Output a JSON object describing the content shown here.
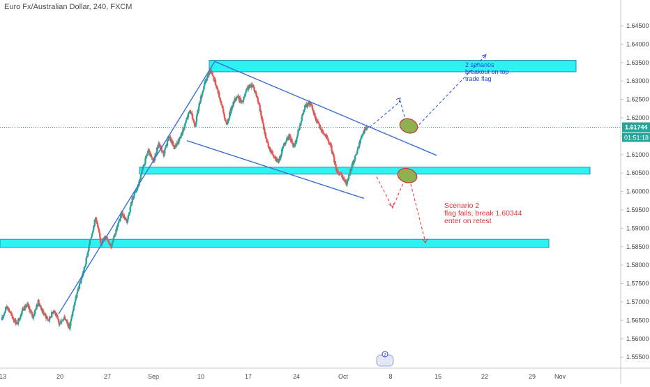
{
  "header": {
    "title": "Euro Fx/Australian Dollar, 240, FXCM"
  },
  "chart_data": {
    "type": "candlestick",
    "symbol": "Euro Fx/Australian Dollar",
    "interval": "240",
    "source": "FXCM",
    "ylim": [
      1.552,
      1.652
    ],
    "y_ticks": [
      "1.55500",
      "1.56000",
      "1.56500",
      "1.57000",
      "1.57500",
      "1.58000",
      "1.58500",
      "1.59000",
      "1.59500",
      "1.60000",
      "1.60500",
      "1.61000",
      "1.61500",
      "1.62000",
      "1.62500",
      "1.63000",
      "1.63500",
      "1.64000",
      "1.64500"
    ],
    "x_ticks": [
      "13",
      "20",
      "27",
      "Sep",
      "10",
      "17",
      "24",
      "Oct",
      "8",
      "15",
      "22",
      "29",
      "Nov"
    ],
    "current_price": {
      "value": 1.61744,
      "label": "1.61744",
      "countdown": "01:51:18",
      "color": "#26a69a"
    },
    "colors": {
      "up": "#26a69a",
      "down": "#ef5350",
      "zone": "#2ef2f2",
      "trend": "#3b6fd6",
      "scenario1": "#2a46d8",
      "scenario2": "#e8323c"
    },
    "zones": [
      {
        "low": 1.6325,
        "high": 1.6356
      },
      {
        "low": 1.6053,
        "high": 1.6066
      },
      {
        "low": 1.5848,
        "high": 1.587
      }
    ],
    "candle_path": [
      1.565,
      1.569,
      1.566,
      1.564,
      1.568,
      1.569,
      1.566,
      1.57,
      1.567,
      1.565,
      1.568,
      1.564,
      1.566,
      1.563,
      1.57,
      1.575,
      1.58,
      1.587,
      1.593,
      1.586,
      1.588,
      1.585,
      1.59,
      1.594,
      1.592,
      1.598,
      1.601,
      1.606,
      1.611,
      1.608,
      1.613,
      1.61,
      1.615,
      1.612,
      1.614,
      1.618,
      1.622,
      1.618,
      1.625,
      1.63,
      1.633,
      1.629,
      1.624,
      1.618,
      1.623,
      1.626,
      1.624,
      1.628,
      1.629,
      1.625,
      1.618,
      1.612,
      1.61,
      1.608,
      1.613,
      1.615,
      1.612,
      1.618,
      1.623,
      1.624,
      1.62,
      1.617,
      1.615,
      1.612,
      1.606,
      1.604,
      1.602,
      1.607,
      1.611,
      1.616,
      1.6175
    ],
    "annotations": {
      "scenario1": [
        "2 senarios",
        "breakout on top",
        "trade flag"
      ],
      "scenario2": [
        "Scenario 2",
        "flag fails, break 1.60344",
        "enter on retest"
      ],
      "badge": "2"
    }
  }
}
